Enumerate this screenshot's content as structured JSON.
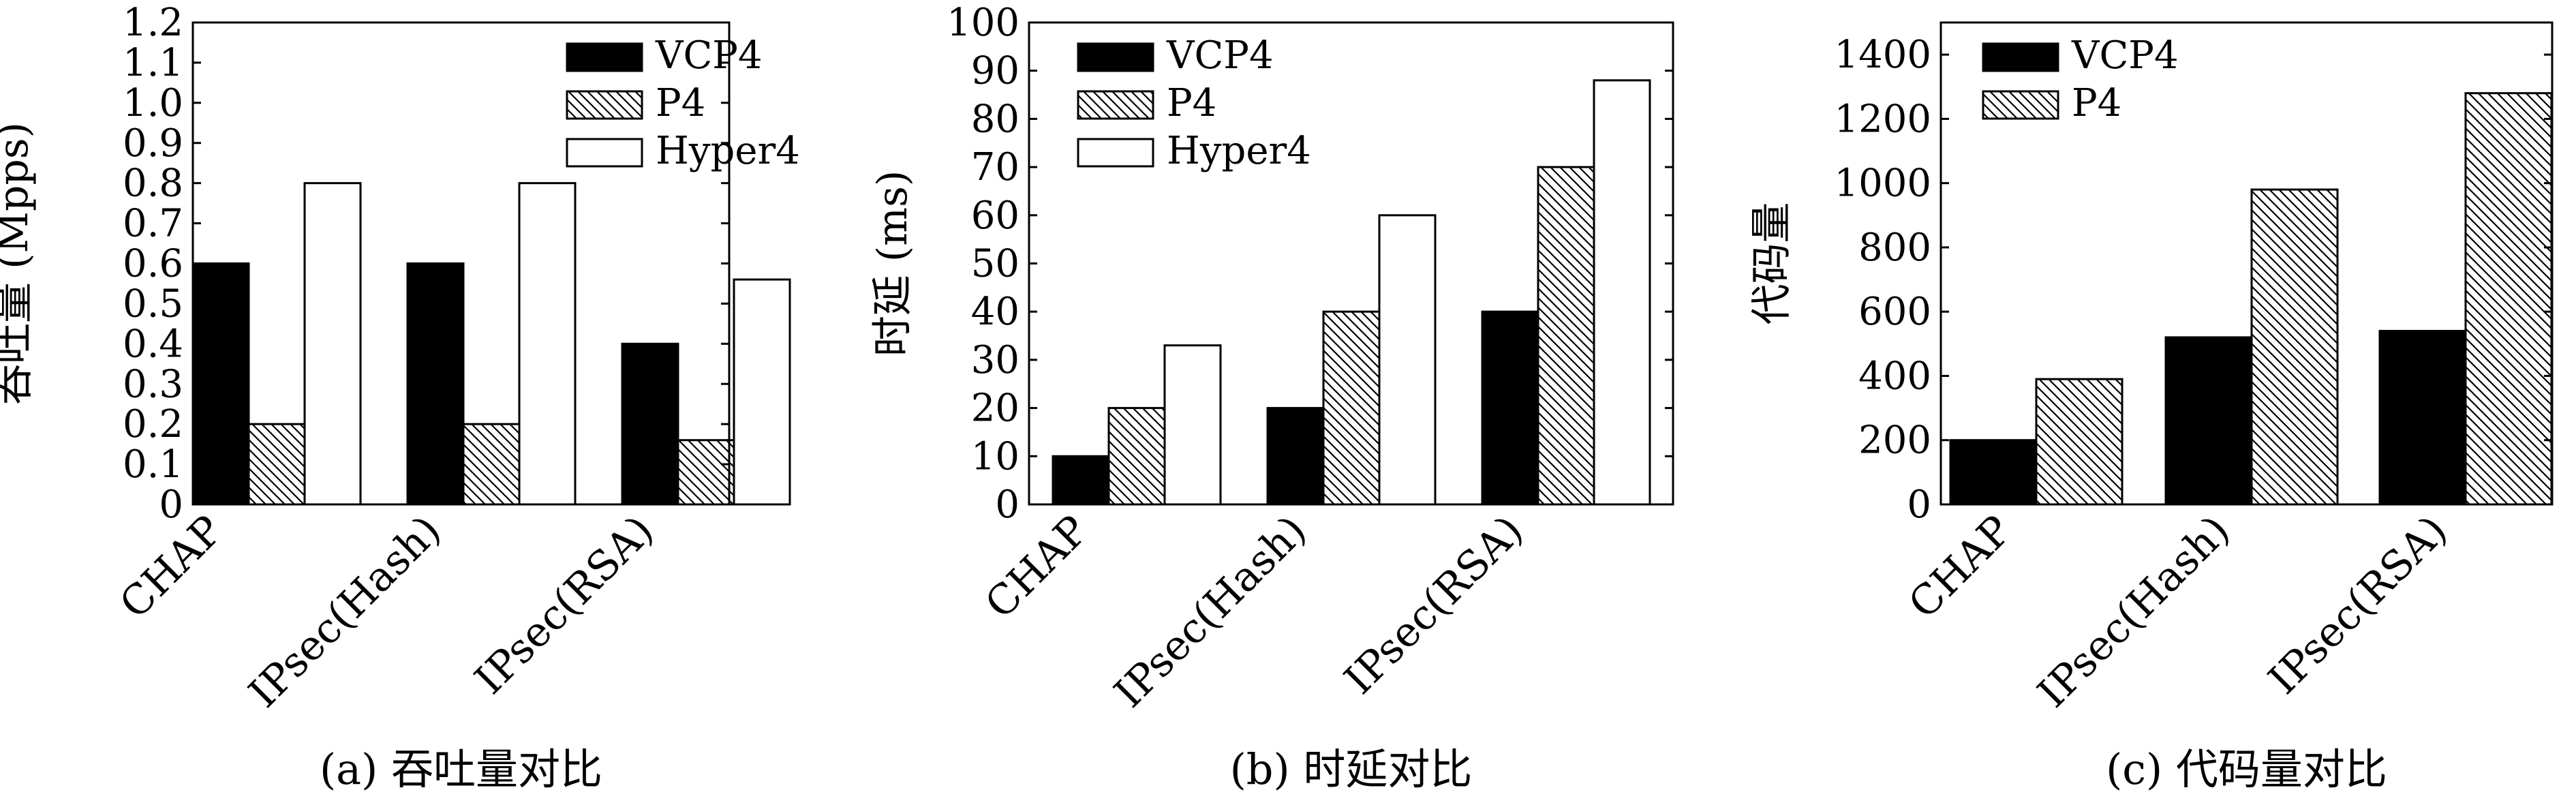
{
  "chart_data": [
    {
      "type": "bar",
      "caption": "(a) 吞吐量对比",
      "ylabel": "吞吐量 (Mpps)",
      "categories": [
        "CHAP",
        "IPsec(Hash)",
        "IPsec(RSA)"
      ],
      "series": [
        {
          "name": "VCP4",
          "values": [
            0.6,
            0.6,
            0.4
          ]
        },
        {
          "name": "P4",
          "values": [
            0.2,
            0.2,
            0.16
          ]
        },
        {
          "name": "Hyper4",
          "values": [
            0.8,
            0.8,
            0.56
          ]
        }
      ],
      "ylim": [
        0,
        1.2
      ],
      "yticks": [
        "0",
        "0.1",
        "0.2",
        "0.3",
        "0.4",
        "0.5",
        "0.6",
        "0.7",
        "0.8",
        "0.9",
        "1.0",
        "1.1",
        "1.2"
      ],
      "legend_position": "top-right"
    },
    {
      "type": "bar",
      "caption": "(b) 时延对比",
      "ylabel": "时延 (ms)",
      "categories": [
        "CHAP",
        "IPsec(Hash)",
        "IPsec(RSA)"
      ],
      "series": [
        {
          "name": "VCP4",
          "values": [
            10,
            20,
            40
          ]
        },
        {
          "name": "P4",
          "values": [
            20,
            40,
            70
          ]
        },
        {
          "name": "Hyper4",
          "values": [
            33,
            60,
            88
          ]
        }
      ],
      "ylim": [
        0,
        100
      ],
      "yticks": [
        "0",
        "10",
        "20",
        "30",
        "40",
        "50",
        "60",
        "70",
        "80",
        "90",
        "100"
      ],
      "legend_position": "top-left"
    },
    {
      "type": "bar",
      "caption": "(c) 代码量对比",
      "ylabel": "代码量",
      "categories": [
        "CHAP",
        "IPsec(Hash)",
        "IPsec(RSA)"
      ],
      "series": [
        {
          "name": "VCP4",
          "values": [
            200,
            520,
            540
          ]
        },
        {
          "name": "P4",
          "values": [
            390,
            980,
            1280
          ]
        }
      ],
      "ylim": [
        0,
        1500
      ],
      "yticks": [
        "0",
        "200",
        "400",
        "600",
        "800",
        "1000",
        "1200",
        "1400"
      ],
      "legend_position": "top-left"
    }
  ],
  "series_styles": {
    "VCP4": {
      "fill": "#000000",
      "pattern": "solid"
    },
    "P4": {
      "fill": "#ffffff",
      "pattern": "diagonal-hatch"
    },
    "Hyper4": {
      "fill": "#ffffff",
      "pattern": "none"
    }
  }
}
